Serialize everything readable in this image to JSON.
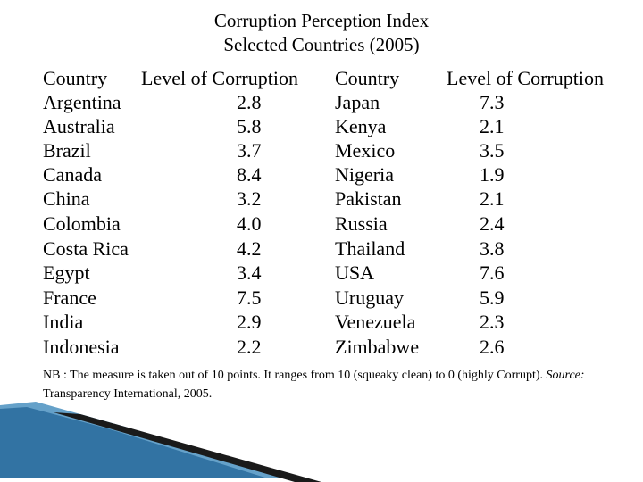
{
  "title": "Corruption Perception Index",
  "subtitle": "Selected Countries (2005)",
  "headers": {
    "country_left": "Country",
    "level_left": "Level of Corruption",
    "country_right": "Country",
    "level_right": "Level of Corruption"
  },
  "left_rows": [
    {
      "country": "Argentina",
      "value": "2.8"
    },
    {
      "country": "Australia",
      "value": "5.8"
    },
    {
      "country": "Brazil",
      "value": "3.7"
    },
    {
      "country": "Canada",
      "value": "8.4"
    },
    {
      "country": "China",
      "value": "3.2"
    },
    {
      "country": "Colombia",
      "value": "4.0"
    },
    {
      "country": "Costa Rica",
      "value": "4.2"
    },
    {
      "country": "Egypt",
      "value": "3.4"
    },
    {
      "country": "France",
      "value": "7.5"
    },
    {
      "country": "India",
      "value": "2.9"
    },
    {
      "country": "Indonesia",
      "value": "2.2"
    }
  ],
  "right_rows": [
    {
      "country": "Japan",
      "value": "7.3"
    },
    {
      "country": "Kenya",
      "value": "2.1"
    },
    {
      "country": "Mexico",
      "value": "3.5"
    },
    {
      "country": "Nigeria",
      "value": "1.9"
    },
    {
      "country": "Pakistan",
      "value": "2.1"
    },
    {
      "country": "Russia",
      "value": "2.4"
    },
    {
      "country": "Thailand",
      "value": "3.8"
    },
    {
      "country": "USA",
      "value": "7.6"
    },
    {
      "country": "Uruguay",
      "value": "5.9"
    },
    {
      "country": "Venezuela",
      "value": "2.3"
    },
    {
      "country": "Zimbabwe",
      "value": "2.6"
    }
  ],
  "note": {
    "text_1": "NB : The measure is taken out of 10 points.  It ranges from 10 (squeaky clean) to 0 (highly Corrupt). ",
    "source_label": "Source:",
    "text_2": " Transparency International, 2005."
  },
  "colors": {
    "deco_light_blue": "#4a90c0",
    "deco_dark": "#1a1a1a",
    "deco_mid_blue": "#2c6e9e"
  }
}
